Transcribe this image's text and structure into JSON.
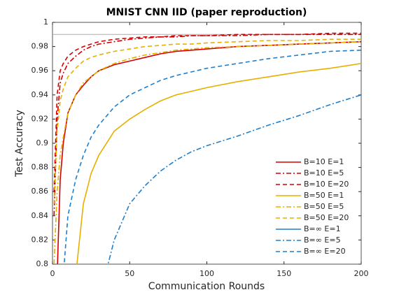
{
  "chart_data": {
    "type": "line",
    "title": "MNIST CNN IID (paper reproduction)",
    "x_label": "Communication Rounds",
    "y_label": "Test Accuracy",
    "x": [
      1,
      3,
      5,
      7,
      10,
      15,
      20,
      25,
      30,
      40,
      50,
      60,
      70,
      80,
      90,
      100,
      120,
      140,
      160,
      180,
      200
    ],
    "xlim": [
      0,
      200
    ],
    "xticks": [
      0,
      50,
      100,
      150,
      200
    ],
    "ylim": [
      0.8,
      1
    ],
    "yticks": [
      0.8,
      0.82,
      0.84,
      0.86,
      0.88,
      0.9,
      0.92,
      0.94,
      0.96,
      0.98,
      1
    ],
    "reference_line": 0.99,
    "legend": "lower right",
    "series": [
      {
        "name": "B=10 E=1",
        "color": "#d40000",
        "dash": "solid",
        "values": [
          null,
          0.79,
          0.87,
          0.9,
          0.925,
          0.94,
          0.948,
          0.955,
          0.96,
          0.965,
          0.968,
          0.971,
          0.974,
          0.976,
          0.977,
          0.978,
          0.98,
          0.981,
          0.982,
          0.983,
          0.984
        ]
      },
      {
        "name": "B=10 E=5",
        "color": "#d40000",
        "dash": "dashdot",
        "values": [
          0.84,
          0.92,
          0.95,
          0.958,
          0.966,
          0.972,
          0.977,
          0.98,
          0.982,
          0.984,
          0.986,
          0.987,
          0.988,
          0.988,
          0.989,
          0.989,
          0.989,
          0.99,
          0.99,
          0.99,
          0.99
        ]
      },
      {
        "name": "B=10 E=20",
        "color": "#d40000",
        "dash": "dashed",
        "values": [
          0.86,
          0.94,
          0.96,
          0.966,
          0.972,
          0.977,
          0.98,
          0.982,
          0.984,
          0.986,
          0.987,
          0.988,
          0.988,
          0.989,
          0.989,
          0.989,
          0.99,
          0.99,
          0.99,
          0.991,
          0.991
        ]
      },
      {
        "name": "B=50 E=1",
        "color": "#e6b000",
        "dash": "solid",
        "values": [
          null,
          null,
          null,
          null,
          null,
          0.79,
          0.85,
          0.875,
          0.89,
          0.91,
          0.92,
          0.928,
          0.935,
          0.94,
          0.943,
          0.946,
          0.951,
          0.955,
          0.959,
          0.962,
          0.966
        ]
      },
      {
        "name": "B=50 E=5",
        "color": "#e6b000",
        "dash": "dashdot",
        "values": [
          0.8,
          0.86,
          0.89,
          0.905,
          0.925,
          0.94,
          0.95,
          0.955,
          0.96,
          0.966,
          0.97,
          0.973,
          0.975,
          0.977,
          0.978,
          0.979,
          0.98,
          0.981,
          0.982,
          0.983,
          0.984
        ]
      },
      {
        "name": "B=50 E=20",
        "color": "#e6b000",
        "dash": "dashed",
        "values": [
          0.85,
          0.91,
          0.935,
          0.945,
          0.955,
          0.962,
          0.968,
          0.971,
          0.973,
          0.976,
          0.978,
          0.98,
          0.981,
          0.982,
          0.982,
          0.983,
          0.984,
          0.985,
          0.985,
          0.986,
          0.986
        ]
      },
      {
        "name": "B=∞ E=1",
        "color": "#1f7fcc",
        "dash": "solid",
        "values": [
          null,
          null,
          null,
          null,
          null,
          null,
          null,
          null,
          null,
          null,
          null,
          null,
          null,
          null,
          null,
          null,
          null,
          null,
          null,
          null,
          null
        ]
      },
      {
        "name": "B=∞ E=5",
        "color": "#1f7fcc",
        "dash": "dashdot",
        "values": [
          null,
          null,
          null,
          null,
          null,
          null,
          null,
          null,
          0.77,
          0.82,
          0.85,
          0.865,
          0.877,
          0.886,
          0.893,
          0.898,
          0.906,
          0.915,
          0.923,
          0.932,
          0.94
        ]
      },
      {
        "name": "B=∞ E=20",
        "color": "#1f7fcc",
        "dash": "dashed",
        "values": [
          null,
          null,
          null,
          0.79,
          0.84,
          0.87,
          0.89,
          0.905,
          0.915,
          0.93,
          0.94,
          0.946,
          0.952,
          0.956,
          0.959,
          0.962,
          0.966,
          0.97,
          0.973,
          0.976,
          0.977
        ]
      }
    ]
  }
}
